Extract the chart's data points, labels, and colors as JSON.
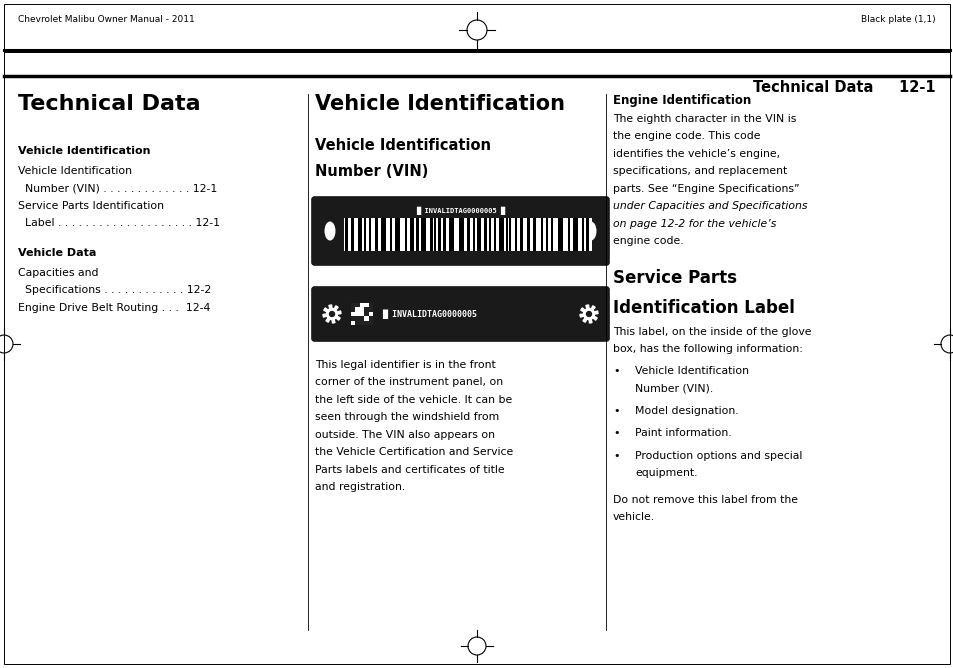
{
  "page_width": 9.54,
  "page_height": 6.68,
  "dpi": 100,
  "bg_color": "#ffffff",
  "header_left": "Chevrolet Malibu Owner Manual - 2011",
  "header_right": "Black plate (1,1)",
  "col1_title": "Technical Data",
  "col1_section1_bold": "Vehicle Identification",
  "col1_section2_bold": "Vehicle Data",
  "col2_title": "Vehicle Identification",
  "col2_sub1": "Vehicle Identification",
  "col2_sub2": "Number (VIN)",
  "col2_body_lines": [
    "This legal identifier is in the front",
    "corner of the instrument panel, on",
    "the left side of the vehicle. It can be",
    "seen through the windshield from",
    "outside. The VIN also appears on",
    "the Vehicle Certification and Service",
    "Parts labels and certificates of title",
    "and registration."
  ],
  "col3_eng_id_title": "Engine Identification",
  "col3_eng_lines": [
    [
      "The eighth character in the VIN is",
      false
    ],
    [
      "the engine code. This code",
      false
    ],
    [
      "identifies the vehicle’s engine,",
      false
    ],
    [
      "specifications, and replacement",
      false
    ],
    [
      "parts. See “Engine Specifications”",
      false
    ],
    [
      "under Capacities and Specifications",
      true
    ],
    [
      "on page 12-2 for the vehicle’s",
      true
    ],
    [
      "engine code.",
      false
    ]
  ],
  "col3_svc_title1": "Service Parts",
  "col3_svc_title2": "Identification Label",
  "col3_svc_intro": [
    "This label, on the inside of the glove",
    "box, has the following information:"
  ],
  "col3_bullets": [
    [
      "Vehicle Identification",
      "Number (VIN)."
    ],
    [
      "Model designation."
    ],
    [
      "Paint information."
    ],
    [
      "Production options and special",
      "equipment."
    ]
  ],
  "col3_footer": [
    "Do not remove this label from the",
    "vehicle."
  ],
  "vin_text1": "INVALIDTAG0000005",
  "vin_text2": "INVALIDTAG0000005",
  "text_color": "#000000",
  "dark_label_color": "#1a1a1a"
}
